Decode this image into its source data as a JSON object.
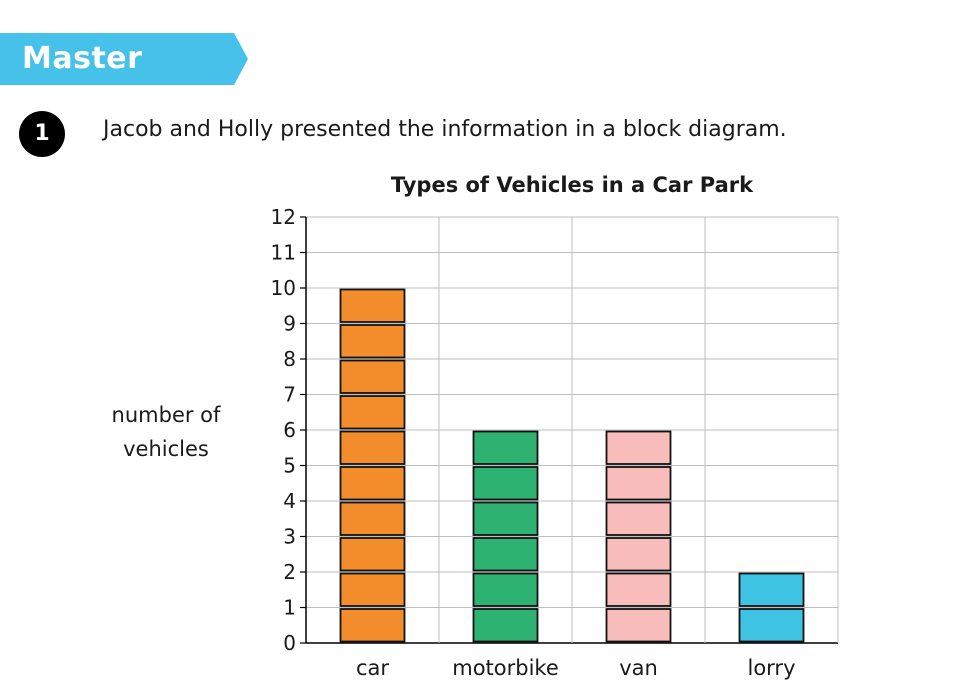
{
  "banner": {
    "label": "Master",
    "color": "#45c1ea"
  },
  "question": {
    "number": "1",
    "text": "Jacob and Holly presented the information in a block diagram."
  },
  "chart_data": {
    "type": "bar",
    "style": "block diagram",
    "title": "Types of Vehicles in a Car Park",
    "ylabel_lines": [
      "number of",
      "vehicles"
    ],
    "xlabel": "",
    "categories": [
      "car",
      "motorbike",
      "van",
      "lorry"
    ],
    "values": [
      10,
      6,
      6,
      2
    ],
    "colors": [
      "#f38d2c",
      "#2eb272",
      "#f8bcbb",
      "#3ec3e2"
    ],
    "ylim": [
      0,
      12
    ],
    "yticks": [
      "0",
      "1",
      "2",
      "3",
      "4",
      "5",
      "6",
      "7",
      "8",
      "9",
      "10",
      "11",
      "12"
    ],
    "grid": true
  }
}
